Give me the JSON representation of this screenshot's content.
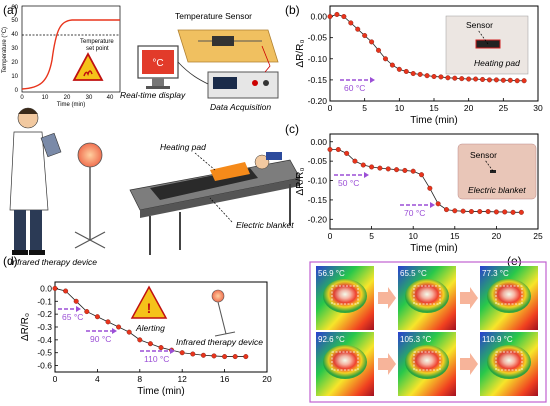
{
  "panels": {
    "a": {
      "label": "(a)",
      "inset_chart": {
        "ylabel": "Temperature (°C)",
        "xlabel": "Time (min)",
        "yticks": [
          "0",
          "10",
          "20",
          "30",
          "40",
          "50",
          "60"
        ],
        "xticks": [
          "0",
          "10",
          "20",
          "30",
          "40",
          "45"
        ],
        "setpoint_label_line1": "Temperature",
        "setpoint_label_line2": "set point"
      },
      "temperature_sensor_label": "Temperature Sensor",
      "monitor_symbol": "°C",
      "realtime_display_label": "Real-time display",
      "data_acquisition_label": "Data Acquisition",
      "heating_pad_label": "Heating pad",
      "electric_blanket_label": "Electric blanket",
      "infrared_device_label": "Infrared therapy device"
    },
    "b": {
      "label": "(b)",
      "sensor_label": "Sensor",
      "device_label": "Heating pad",
      "temp_annotation": "60 °C"
    },
    "c": {
      "label": "(c)",
      "sensor_label": "Sensor",
      "device_label": "Electric blanket",
      "temp_annotation_1": "50 °C",
      "temp_annotation_2": "70 °C"
    },
    "d": {
      "label": "(d)",
      "alert_label": "Alerting",
      "device_label": "Infrared therapy device",
      "temp_annotation_1": "65 °C",
      "temp_annotation_2": "90 °C",
      "temp_annotation_3": "110 °C"
    },
    "e": {
      "label": "(e)",
      "thermal_readings": [
        "56.9 °C",
        "65.5 °C",
        "77.3 °C",
        "92.6 °C",
        "105.3 °C",
        "110.9 °C"
      ]
    }
  },
  "chart_data": [
    {
      "panel": "b",
      "type": "scatter",
      "xlabel": "Time (min)",
      "ylabel": "ΔR/R₀",
      "xlim": [
        0,
        30
      ],
      "ylim": [
        -0.2,
        0.025
      ],
      "xticks": [
        0,
        5,
        10,
        15,
        20,
        25,
        30
      ],
      "yticks": [
        0.0,
        -0.05,
        -0.1,
        -0.15,
        -0.2
      ],
      "series": [
        {
          "color": "#e8341c",
          "x": [
            0,
            1,
            2,
            3,
            4,
            5,
            6,
            7,
            8,
            9,
            10,
            11,
            12,
            13,
            14,
            15,
            16,
            17,
            18,
            19,
            20,
            21,
            22,
            23,
            24,
            25,
            26,
            27,
            28
          ],
          "y": [
            0.0,
            0.005,
            0.0,
            -0.015,
            -0.03,
            -0.045,
            -0.06,
            -0.08,
            -0.1,
            -0.115,
            -0.125,
            -0.13,
            -0.135,
            -0.137,
            -0.14,
            -0.142,
            -0.143,
            -0.145,
            -0.146,
            -0.147,
            -0.148,
            -0.148,
            -0.149,
            -0.15,
            -0.15,
            -0.151,
            -0.151,
            -0.152,
            -0.152
          ]
        }
      ]
    },
    {
      "panel": "c",
      "type": "scatter",
      "xlabel": "Time (min)",
      "ylabel": "ΔR/R₀",
      "xlim": [
        0,
        25
      ],
      "ylim": [
        -0.225,
        0.02
      ],
      "xticks": [
        0,
        5,
        10,
        15,
        20,
        25
      ],
      "yticks": [
        0.0,
        -0.05,
        -0.1,
        -0.15,
        -0.2
      ],
      "series": [
        {
          "color": "#e8341c",
          "x": [
            0,
            1,
            2,
            3,
            4,
            5,
            6,
            7,
            8,
            9,
            10,
            11,
            12,
            13,
            14,
            15,
            16,
            17,
            18,
            19,
            20,
            21,
            22,
            23
          ],
          "y": [
            -0.02,
            -0.02,
            -0.03,
            -0.05,
            -0.06,
            -0.065,
            -0.068,
            -0.07,
            -0.072,
            -0.074,
            -0.076,
            -0.085,
            -0.12,
            -0.16,
            -0.175,
            -0.178,
            -0.179,
            -0.18,
            -0.18,
            -0.18,
            -0.181,
            -0.181,
            -0.182,
            -0.182
          ]
        }
      ]
    },
    {
      "panel": "d",
      "type": "scatter",
      "xlabel": "Time (min)",
      "ylabel": "ΔR/R₀",
      "xlim": [
        0,
        20
      ],
      "ylim": [
        -0.65,
        0.05
      ],
      "xticks": [
        0,
        4,
        8,
        12,
        16,
        20
      ],
      "yticks": [
        0.0,
        -0.1,
        -0.2,
        -0.3,
        -0.4,
        -0.5,
        -0.6
      ],
      "series": [
        {
          "color": "#e8341c",
          "x": [
            0,
            1,
            2,
            3,
            4,
            5,
            6,
            7,
            8,
            9,
            10,
            11,
            12,
            13,
            14,
            15,
            16,
            17,
            18
          ],
          "y": [
            0.0,
            -0.02,
            -0.1,
            -0.18,
            -0.22,
            -0.26,
            -0.3,
            -0.34,
            -0.4,
            -0.43,
            -0.46,
            -0.48,
            -0.5,
            -0.51,
            -0.52,
            -0.525,
            -0.53,
            -0.53,
            -0.53
          ]
        }
      ]
    }
  ]
}
